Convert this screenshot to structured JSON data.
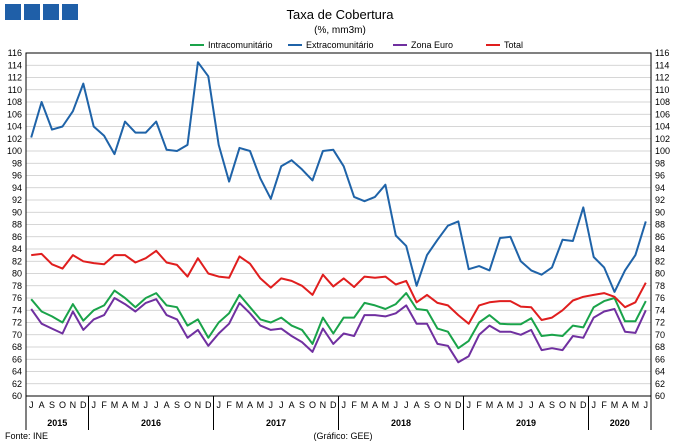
{
  "chart_data": {
    "type": "line",
    "title": "Taxa de Cobertura",
    "subtitle": "(%, mm3m)",
    "source": "Fonte: INE",
    "credit": "(Gráfico: GEE)",
    "ylim": [
      60,
      116
    ],
    "yticks": [
      60,
      62,
      64,
      66,
      68,
      70,
      72,
      74,
      76,
      78,
      80,
      82,
      84,
      86,
      88,
      90,
      92,
      94,
      96,
      98,
      100,
      102,
      104,
      106,
      108,
      110,
      112,
      114,
      116
    ],
    "grid": true,
    "legend_position": "top",
    "month_labels": [
      "J",
      "A",
      "S",
      "O",
      "N",
      "D",
      "J",
      "F",
      "M",
      "A",
      "M",
      "J",
      "J",
      "A",
      "S",
      "O",
      "N",
      "D",
      "J",
      "F",
      "M",
      "A",
      "M",
      "J",
      "J",
      "A",
      "S",
      "O",
      "N",
      "D",
      "J",
      "F",
      "M",
      "A",
      "M",
      "J",
      "J",
      "A",
      "S",
      "O",
      "N",
      "D",
      "J",
      "F",
      "M",
      "A",
      "M",
      "J",
      "J",
      "A",
      "S",
      "O",
      "N",
      "D",
      "J",
      "F",
      "M",
      "A",
      "M",
      "J"
    ],
    "year_groups": [
      {
        "label": "2015",
        "start": 0,
        "count": 6
      },
      {
        "label": "2016",
        "start": 6,
        "count": 12
      },
      {
        "label": "2017",
        "start": 18,
        "count": 12
      },
      {
        "label": "2018",
        "start": 30,
        "count": 12
      },
      {
        "label": "2019",
        "start": 42,
        "count": 12
      },
      {
        "label": "2020",
        "start": 54,
        "count": 6
      }
    ],
    "series": [
      {
        "name": "Intracomunitário",
        "color": "#1aa34a",
        "values": [
          75.8,
          73.8,
          73.0,
          72.0,
          75.0,
          72.3,
          74.0,
          74.8,
          77.2,
          76.0,
          74.5,
          76.0,
          76.8,
          74.8,
          74.5,
          71.5,
          72.5,
          69.5,
          72.0,
          73.5,
          76.5,
          74.5,
          72.5,
          72.0,
          72.8,
          71.5,
          70.8,
          68.5,
          72.8,
          70.2,
          72.8,
          72.8,
          75.2,
          74.8,
          74.2,
          75.0,
          76.8,
          74.2,
          74.0,
          71.0,
          70.5,
          67.8,
          69.0,
          72.0,
          73.2,
          71.8,
          71.7,
          71.7,
          72.7,
          69.8,
          70.0,
          69.8,
          71.5,
          71.2,
          74.5,
          75.5,
          76.0,
          72.2,
          72.2,
          75.5
        ]
      },
      {
        "name": "Extracomunitário",
        "color": "#1f63a8",
        "values": [
          102.2,
          108.0,
          103.5,
          104.0,
          106.5,
          111.0,
          104.0,
          102.5,
          99.5,
          104.8,
          103.0,
          103.0,
          104.8,
          100.2,
          100.0,
          101.0,
          114.5,
          112.2,
          101.0,
          95.0,
          100.5,
          100.0,
          95.5,
          92.2,
          97.5,
          98.5,
          97.0,
          95.2,
          100.0,
          100.2,
          97.5,
          92.5,
          91.8,
          92.5,
          94.5,
          86.2,
          84.5,
          78.0,
          83.0,
          85.5,
          87.8,
          88.5,
          80.7,
          81.2,
          80.5,
          85.8,
          86.0,
          82.0,
          80.5,
          79.8,
          81.0,
          85.5,
          85.3,
          90.8,
          82.7,
          81.0,
          77.0,
          80.5,
          83.0,
          88.5
        ]
      },
      {
        "name": "Zona Euro",
        "color": "#7030a0",
        "values": [
          74.2,
          71.8,
          71.0,
          70.2,
          73.8,
          70.8,
          72.5,
          73.2,
          76.0,
          75.0,
          73.8,
          75.2,
          75.8,
          73.2,
          72.5,
          69.5,
          70.8,
          68.2,
          70.2,
          71.8,
          75.2,
          73.5,
          71.5,
          70.8,
          71.0,
          69.8,
          68.8,
          67.2,
          71.0,
          68.5,
          70.2,
          69.8,
          73.2,
          73.2,
          73.0,
          73.5,
          74.8,
          71.8,
          71.8,
          68.5,
          68.2,
          65.5,
          66.5,
          70.0,
          71.5,
          70.5,
          70.5,
          70.0,
          70.8,
          67.5,
          67.8,
          67.5,
          69.8,
          69.5,
          72.8,
          73.8,
          74.2,
          70.5,
          70.3,
          74.0
        ]
      },
      {
        "name": "Total",
        "color": "#e01e1e",
        "values": [
          83.0,
          83.2,
          81.5,
          80.8,
          83.0,
          82.0,
          81.7,
          81.5,
          83.0,
          83.0,
          81.8,
          82.5,
          83.7,
          81.8,
          81.4,
          79.5,
          82.5,
          80.0,
          79.5,
          79.3,
          82.8,
          81.6,
          79.2,
          77.7,
          79.2,
          78.8,
          78.0,
          76.5,
          79.8,
          77.9,
          79.2,
          77.8,
          79.5,
          79.3,
          79.5,
          78.2,
          78.8,
          75.3,
          76.5,
          75.2,
          74.8,
          73.2,
          71.8,
          74.8,
          75.3,
          75.5,
          75.5,
          74.6,
          74.5,
          72.4,
          72.8,
          74.0,
          75.6,
          76.2,
          76.5,
          76.8,
          76.2,
          74.5,
          75.3,
          78.5
        ]
      }
    ]
  }
}
